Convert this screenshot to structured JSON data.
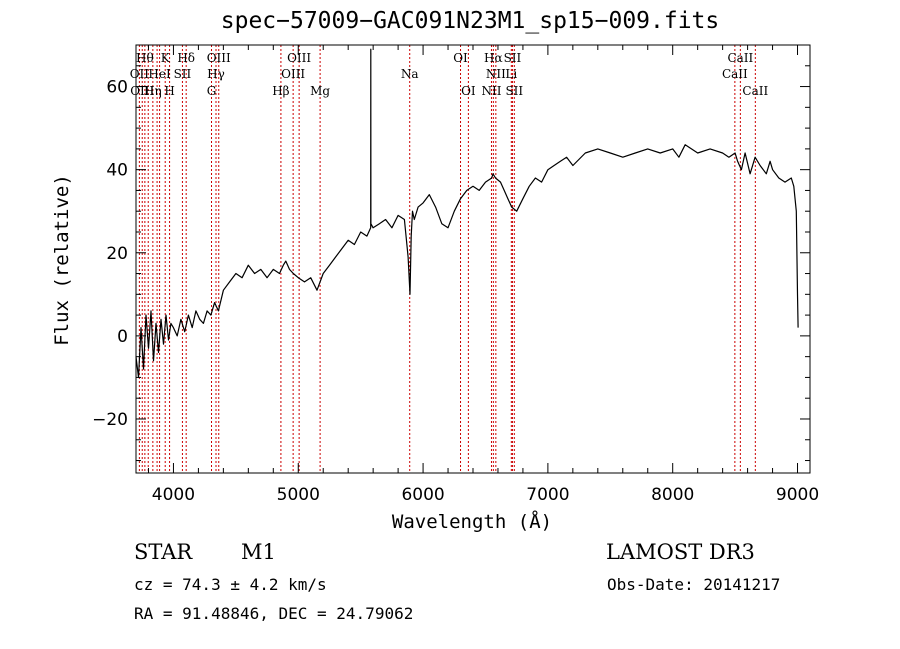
{
  "chart_data": {
    "type": "line",
    "title": "spec−57009−GAC091N23M1_sp15−009.fits",
    "xlabel": "Wavelength (Å)",
    "ylabel": "Flux (relative)",
    "xlim": [
      3700,
      9100
    ],
    "ylim": [
      -33,
      70
    ],
    "grid": false,
    "x_ticks": [
      4000,
      5000,
      6000,
      7000,
      8000,
      9000
    ],
    "x_tick_labels": [
      "4000",
      "5000",
      "6000",
      "7000",
      "8000",
      "9000"
    ],
    "y_ticks": [
      -20,
      0,
      20,
      40,
      60
    ],
    "y_tick_labels": [
      "−20",
      "0",
      "20",
      "40",
      "60"
    ],
    "series": [
      {
        "name": "spectrum",
        "color": "#000000",
        "x": [
          3700,
          3720,
          3740,
          3760,
          3780,
          3800,
          3820,
          3840,
          3860,
          3880,
          3900,
          3920,
          3940,
          3960,
          3980,
          4000,
          4030,
          4060,
          4090,
          4120,
          4150,
          4180,
          4210,
          4240,
          4270,
          4300,
          4330,
          4360,
          4400,
          4450,
          4500,
          4550,
          4600,
          4650,
          4700,
          4750,
          4800,
          4850,
          4880,
          4900,
          4930,
          4960,
          5000,
          5050,
          5100,
          5150,
          5200,
          5250,
          5300,
          5350,
          5400,
          5450,
          5500,
          5550,
          5580,
          5581,
          5582,
          5600,
          5650,
          5700,
          5750,
          5800,
          5850,
          5880,
          5895,
          5905,
          5915,
          5930,
          5960,
          6000,
          6050,
          6100,
          6150,
          6200,
          6250,
          6300,
          6350,
          6400,
          6450,
          6500,
          6550,
          6560,
          6580,
          6620,
          6650,
          6680,
          6710,
          6750,
          6800,
          6850,
          6900,
          6950,
          7000,
          7050,
          7100,
          7150,
          7200,
          7300,
          7400,
          7500,
          7600,
          7700,
          7800,
          7900,
          8000,
          8050,
          8100,
          8200,
          8300,
          8400,
          8450,
          8500,
          8520,
          8550,
          8580,
          8620,
          8660,
          8700,
          8750,
          8780,
          8800,
          8850,
          8900,
          8950,
          8970,
          8990,
          9000,
          9005
        ],
        "y": [
          -5,
          -10,
          2,
          -8,
          5,
          -3,
          6,
          -6,
          3,
          -4,
          4,
          -2,
          5,
          -1,
          3,
          2,
          0,
          4,
          1,
          5,
          2,
          6,
          4,
          3,
          6,
          5,
          8,
          6,
          11,
          13,
          15,
          14,
          17,
          15,
          16,
          14,
          16,
          15,
          17,
          18,
          16,
          15,
          14,
          13,
          14,
          11,
          15,
          17,
          19,
          21,
          23,
          22,
          25,
          24,
          26,
          69,
          27,
          26,
          27,
          28,
          26,
          29,
          28,
          19,
          10,
          24,
          30,
          28,
          31,
          32,
          34,
          31,
          27,
          26,
          30,
          33,
          35,
          36,
          35,
          37,
          38,
          39,
          38,
          37,
          35,
          33,
          31,
          30,
          33,
          36,
          38,
          37,
          40,
          41,
          42,
          43,
          41,
          44,
          45,
          44,
          43,
          44,
          45,
          44,
          45,
          43,
          46,
          44,
          45,
          44,
          43,
          44,
          42,
          40,
          44,
          39,
          43,
          41,
          39,
          42,
          40,
          38,
          37,
          38,
          36,
          30,
          10,
          2
        ]
      }
    ],
    "lines": [
      {
        "wavelength": 3727,
        "label": "OII"
      },
      {
        "wavelength": 3750,
        "label": "OIII"
      },
      {
        "wavelength": 3771,
        "label": "Hθ"
      },
      {
        "wavelength": 3798,
        "label": "Hη"
      },
      {
        "wavelength": 3835,
        "label": "Hη"
      },
      {
        "wavelength": 3869,
        "label": "NeIII"
      },
      {
        "wavelength": 3889,
        "label": "HeI"
      },
      {
        "wavelength": 3934,
        "label": "K"
      },
      {
        "wavelength": 3969,
        "label": "H"
      },
      {
        "wavelength": 4072,
        "label": "SII"
      },
      {
        "wavelength": 4102,
        "label": "Hδ"
      },
      {
        "wavelength": 4305,
        "label": "G"
      },
      {
        "wavelength": 4341,
        "label": "Hγ"
      },
      {
        "wavelength": 4363,
        "label": "OIII"
      },
      {
        "wavelength": 4861,
        "label": "Hβ"
      },
      {
        "wavelength": 4959,
        "label": "OIII"
      },
      {
        "wavelength": 5007,
        "label": "OIII"
      },
      {
        "wavelength": 5175,
        "label": "Mg"
      },
      {
        "wavelength": 5893,
        "label": "Na"
      },
      {
        "wavelength": 6300,
        "label": "OI"
      },
      {
        "wavelength": 6363,
        "label": "OI"
      },
      {
        "wavelength": 6548,
        "label": "NII"
      },
      {
        "wavelength": 6563,
        "label": "Hα"
      },
      {
        "wavelength": 6583,
        "label": "NII"
      },
      {
        "wavelength": 6707,
        "label": "Li"
      },
      {
        "wavelength": 6716,
        "label": "SII"
      },
      {
        "wavelength": 6731,
        "label": "SII"
      },
      {
        "wavelength": 8498,
        "label": "CaII"
      },
      {
        "wavelength": 8542,
        "label": "CaII"
      },
      {
        "wavelength": 8662,
        "label": "CaII"
      }
    ],
    "line_labels": [
      {
        "text": "Hθ",
        "wavelength": 3771,
        "row": 1
      },
      {
        "text": "K",
        "wavelength": 3934,
        "row": 1
      },
      {
        "text": "Hδ",
        "wavelength": 4102,
        "row": 1
      },
      {
        "text": "OIII",
        "wavelength": 4363,
        "row": 1
      },
      {
        "text": "OIII",
        "wavelength": 5007,
        "row": 1
      },
      {
        "text": "OI",
        "wavelength": 6300,
        "row": 1
      },
      {
        "text": "Hα",
        "wavelength": 6563,
        "row": 1
      },
      {
        "text": "SII",
        "wavelength": 6716,
        "row": 1
      },
      {
        "text": "CaII",
        "wavelength": 8542,
        "row": 1
      },
      {
        "text": "OII",
        "wavelength": 3727,
        "row": 2
      },
      {
        "text": "HeI",
        "wavelength": 3889,
        "row": 2
      },
      {
        "text": "SII",
        "wavelength": 4072,
        "row": 2
      },
      {
        "text": "Hγ",
        "wavelength": 4341,
        "row": 2
      },
      {
        "text": "OIII",
        "wavelength": 4959,
        "row": 2
      },
      {
        "text": "Na",
        "wavelength": 5893,
        "row": 2
      },
      {
        "text": "NII",
        "wavelength": 6583,
        "row": 2
      },
      {
        "text": "Li",
        "wavelength": 6707,
        "row": 2
      },
      {
        "text": "CaII",
        "wavelength": 8498,
        "row": 2
      },
      {
        "text": "OIII",
        "wavelength": 3750,
        "row": 3
      },
      {
        "text": "Hη",
        "wavelength": 3835,
        "row": 3
      },
      {
        "text": "H",
        "wavelength": 3969,
        "row": 3
      },
      {
        "text": "G",
        "wavelength": 4305,
        "row": 3
      },
      {
        "text": "Hβ",
        "wavelength": 4861,
        "row": 3
      },
      {
        "text": "Mg",
        "wavelength": 5175,
        "row": 3
      },
      {
        "text": "OI",
        "wavelength": 6363,
        "row": 3
      },
      {
        "text": "NII",
        "wavelength": 6548,
        "row": 3
      },
      {
        "text": "SII",
        "wavelength": 6731,
        "row": 3
      },
      {
        "text": "CaII",
        "wavelength": 8662,
        "row": 3
      }
    ],
    "line_color": "#cc0000",
    "axis_color": "#000000"
  },
  "footer": {
    "object_class": "STAR",
    "subclass": "M1",
    "survey": "LAMOST DR3",
    "cz": "cz = 74.3 ± 4.2 km/s",
    "obs_date": "Obs-Date: 20141217",
    "coords": "RA =  91.48846, DEC =  24.79062"
  }
}
